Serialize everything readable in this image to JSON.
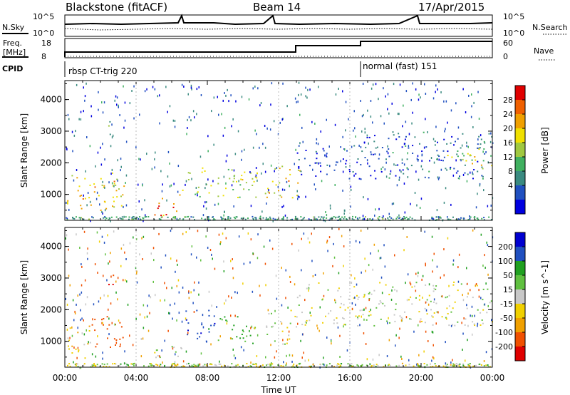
{
  "header": {
    "station": "Blackstone (fitACF)",
    "beam": "Beam 14",
    "date": "17/Apr/2015"
  },
  "noise_panel": {
    "left_label": "N.Sky",
    "right_label": "N.Search",
    "ticks_left": [
      "10^5",
      "10^0"
    ],
    "ticks_right": [
      "10^5",
      "10^0"
    ]
  },
  "freq_panel": {
    "left_label_line1": "Freq.",
    "left_label_line2": "[MHz]",
    "right_label": "Nave",
    "ticks_left": [
      "18",
      "8"
    ],
    "ticks_right": [
      "60",
      "0"
    ]
  },
  "cpid_panel": {
    "label": "CPID",
    "programs": [
      {
        "name": "rbsp CT-trig 220",
        "start_hour": 0.0
      },
      {
        "name": "normal (fast) 151",
        "start_hour": 16.5
      }
    ]
  },
  "time_axis": {
    "label": "Time UT",
    "ticks": [
      "00:00",
      "04:00",
      "08:00",
      "12:00",
      "16:00",
      "20:00",
      "00:00"
    ]
  },
  "chart_data": [
    {
      "type": "heatmap",
      "title": "",
      "xlabel": "",
      "ylabel": "Slant Range [km]",
      "xlim_hours": [
        0,
        24
      ],
      "ylim": [
        180,
        4600
      ],
      "yticks": [
        "4000",
        "3000",
        "2000",
        "1000"
      ],
      "ytick_values": [
        4000,
        3000,
        2000,
        1000
      ],
      "colorbar": {
        "label": "Power [dB]",
        "ticks": [
          "28",
          "24",
          "20",
          "16",
          "12",
          "8",
          "4"
        ],
        "colors": [
          "#0000e0",
          "#2050c0",
          "#3a8a80",
          "#40b060",
          "#a0c840",
          "#f0e000",
          "#f0a000",
          "#f06000",
          "#e00000"
        ]
      },
      "regions": [
        {
          "t0": 0.1,
          "t1": 3.3,
          "r0": 400,
          "r1": 1700,
          "value": 22
        },
        {
          "t0": 2.4,
          "t1": 2.7,
          "r0": 2700,
          "r1": 3600,
          "value": 12
        },
        {
          "t0": 4.8,
          "t1": 6.6,
          "r0": 300,
          "r1": 900,
          "value": 26
        },
        {
          "t0": 6.4,
          "t1": 10.8,
          "r0": 900,
          "r1": 1900,
          "value": 18
        },
        {
          "t0": 11.2,
          "t1": 13.2,
          "r0": 900,
          "r1": 2000,
          "value": 22
        },
        {
          "t0": 13.0,
          "t1": 16.5,
          "r0": 1500,
          "r1": 2600,
          "value": 6
        },
        {
          "t0": 16.5,
          "t1": 24.0,
          "r0": 1500,
          "r1": 3000,
          "value": 8
        },
        {
          "t0": 21.3,
          "t1": 24.0,
          "r0": 1800,
          "r1": 2500,
          "value": 18
        }
      ]
    },
    {
      "type": "heatmap",
      "title": "",
      "xlabel": "Time UT",
      "ylabel": "Slant Range [km]",
      "xlim_hours": [
        0,
        24
      ],
      "ylim": [
        180,
        4600
      ],
      "yticks": [
        "4000",
        "3000",
        "2000",
        "1000"
      ],
      "ytick_values": [
        4000,
        3000,
        2000,
        1000
      ],
      "colorbar": {
        "label": "Velocity [m s^-1]",
        "ticks": [
          "200",
          "100",
          "50",
          "15",
          "-15",
          "-50",
          "-100",
          "-200"
        ],
        "colors": [
          "#e00000",
          "#f05000",
          "#f0a000",
          "#f0d000",
          "#c8c8c8",
          "#60c040",
          "#20a020",
          "#2050c0",
          "#0000d0"
        ]
      },
      "regions": [
        {
          "t0": 0.1,
          "t1": 1.5,
          "r0": 400,
          "r1": 1500,
          "value": -40
        },
        {
          "t0": 1.5,
          "t1": 3.3,
          "r0": 800,
          "r1": 1900,
          "value": -150
        },
        {
          "t0": 2.4,
          "t1": 2.7,
          "r0": 2700,
          "r1": 3600,
          "value": -200
        },
        {
          "t0": 4.8,
          "t1": 6.6,
          "r0": 400,
          "r1": 1000,
          "value": 0
        },
        {
          "t0": 6.6,
          "t1": 8.4,
          "r0": 1000,
          "r1": 2000,
          "value": 180
        },
        {
          "t0": 8.4,
          "t1": 10.8,
          "r0": 900,
          "r1": 1800,
          "value": 60
        },
        {
          "t0": 11.2,
          "t1": 13.0,
          "r0": 900,
          "r1": 2000,
          "value": 0
        },
        {
          "t0": 13.0,
          "t1": 24.0,
          "r0": 1500,
          "r1": 2900,
          "value": 0
        }
      ]
    }
  ]
}
